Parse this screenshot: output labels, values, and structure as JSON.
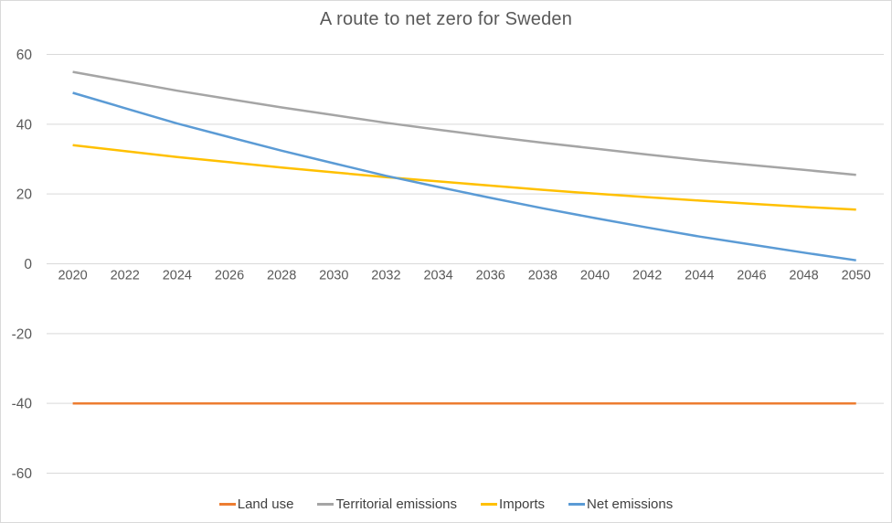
{
  "chart_data": {
    "type": "line",
    "title": "A route to net zero for Sweden",
    "xlabel": "",
    "ylabel": "",
    "x": [
      2020,
      2022,
      2024,
      2026,
      2028,
      2030,
      2032,
      2034,
      2036,
      2038,
      2040,
      2042,
      2044,
      2046,
      2048,
      2050
    ],
    "yticks": [
      60,
      40,
      20,
      0,
      -20,
      -40,
      -60
    ],
    "ylim": [
      -60,
      60
    ],
    "grid": "horizontal",
    "legend_position": "bottom",
    "series": [
      {
        "name": "Land use",
        "color": "#ED7D31",
        "values": [
          -40,
          -40,
          -40,
          -40,
          -40,
          -40,
          -40,
          -40,
          -40,
          -40,
          -40,
          -40,
          -40,
          -40,
          -40,
          -40
        ]
      },
      {
        "name": "Territorial emissions",
        "color": "#A5A5A5",
        "values": [
          55,
          52.3,
          49.6,
          47.2,
          44.8,
          42.6,
          40.4,
          38.4,
          36.5,
          34.7,
          33,
          31.3,
          29.7,
          28.3,
          26.9,
          25.5
        ]
      },
      {
        "name": "Imports",
        "color": "#FFC000",
        "values": [
          34,
          32.3,
          30.6,
          29.1,
          27.6,
          26.2,
          24.8,
          23.6,
          22.4,
          21.2,
          20.1,
          19.1,
          18.1,
          17.2,
          16.3,
          15.5
        ]
      },
      {
        "name": "Net emissions",
        "color": "#5B9BD5",
        "values": [
          49,
          44.6,
          40.2,
          36.3,
          32.4,
          28.8,
          25.2,
          22,
          18.9,
          15.9,
          13.1,
          10.4,
          7.8,
          5.5,
          3.2,
          1
        ]
      }
    ]
  },
  "colors": {
    "background": "#FFFFFF",
    "border": "#D9D9D9",
    "gridline": "#D9D9D9",
    "axis_text": "#595959",
    "title_text": "#595959",
    "legend_text": "#404040"
  }
}
